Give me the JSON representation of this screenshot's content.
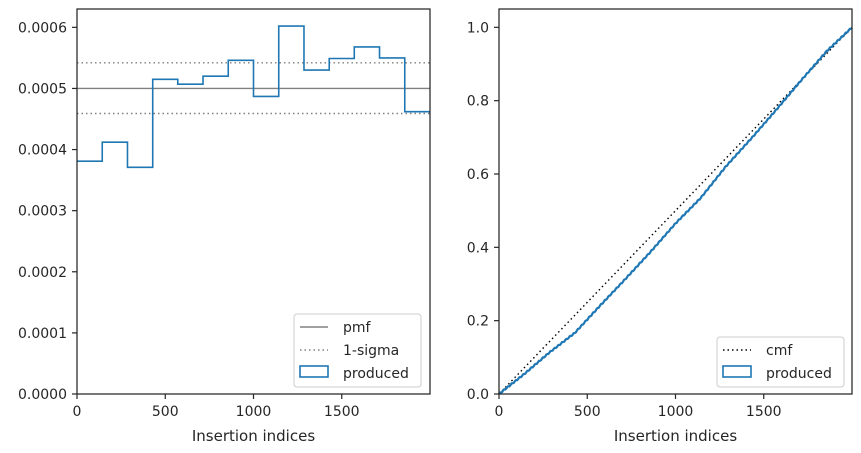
{
  "chart_data": [
    {
      "type": "step",
      "xlabel": "Insertion indices",
      "ylabel": "",
      "xlim": [
        0,
        2000
      ],
      "ylim": [
        0,
        0.00063
      ],
      "xticks": [
        0,
        500,
        1000,
        1500
      ],
      "yticks": [
        0.0,
        0.0001,
        0.0002,
        0.0003,
        0.0004,
        0.0005,
        0.0006
      ],
      "ytick_labels": [
        "0.0000",
        "0.0001",
        "0.0002",
        "0.0003",
        "0.0004",
        "0.0005",
        "0.0006"
      ],
      "grid": false,
      "legend_position": "lower-right",
      "reference_lines": [
        {
          "name": "pmf",
          "y": 0.0005,
          "style": "solid",
          "color": "#808080"
        },
        {
          "name": "1-sigma",
          "y": 0.000542,
          "style": "dotted",
          "color": "#808080"
        },
        {
          "name": "1-sigma",
          "y": 0.000459,
          "style": "dotted",
          "color": "#808080"
        }
      ],
      "series": [
        {
          "name": "produced",
          "color": "#1f77b4",
          "bin_edges": [
            0,
            143,
            286,
            429,
            571,
            714,
            857,
            1000,
            1143,
            1286,
            1429,
            1571,
            1714,
            1857,
            2000
          ],
          "values": [
            0.000381,
            0.000412,
            0.000371,
            0.000515,
            0.000507,
            0.00052,
            0.000546,
            0.000487,
            0.000602,
            0.00053,
            0.000549,
            0.000568,
            0.00055,
            0.000462
          ]
        }
      ],
      "legend": [
        "pmf",
        "1-sigma",
        "produced"
      ]
    },
    {
      "type": "line",
      "xlabel": "Insertion indices",
      "ylabel": "",
      "xlim": [
        0,
        2000
      ],
      "ylim": [
        0,
        1.05
      ],
      "xticks": [
        0,
        500,
        1000,
        1500
      ],
      "yticks": [
        0.0,
        0.2,
        0.4,
        0.6,
        0.8,
        1.0
      ],
      "ytick_labels": [
        "0.0",
        "0.2",
        "0.4",
        "0.6",
        "0.8",
        "1.0"
      ],
      "grid": false,
      "legend_position": "lower-right",
      "series": [
        {
          "name": "cmf",
          "style": "dotted",
          "color": "#000000",
          "x": [
            0,
            2000
          ],
          "y": [
            0,
            1.0
          ]
        },
        {
          "name": "produced",
          "style": "solid",
          "color": "#1f77b4",
          "x": [
            0,
            143,
            286,
            429,
            571,
            714,
            857,
            1000,
            1143,
            1286,
            1429,
            1571,
            1714,
            1857,
            2000
          ],
          "y": [
            0,
            0.0545,
            0.1134,
            0.1664,
            0.2401,
            0.3126,
            0.3869,
            0.4651,
            0.5348,
            0.6209,
            0.6967,
            0.7752,
            0.8565,
            0.9352,
            1.0
          ]
        }
      ],
      "legend": [
        "cmf",
        "produced"
      ]
    }
  ]
}
